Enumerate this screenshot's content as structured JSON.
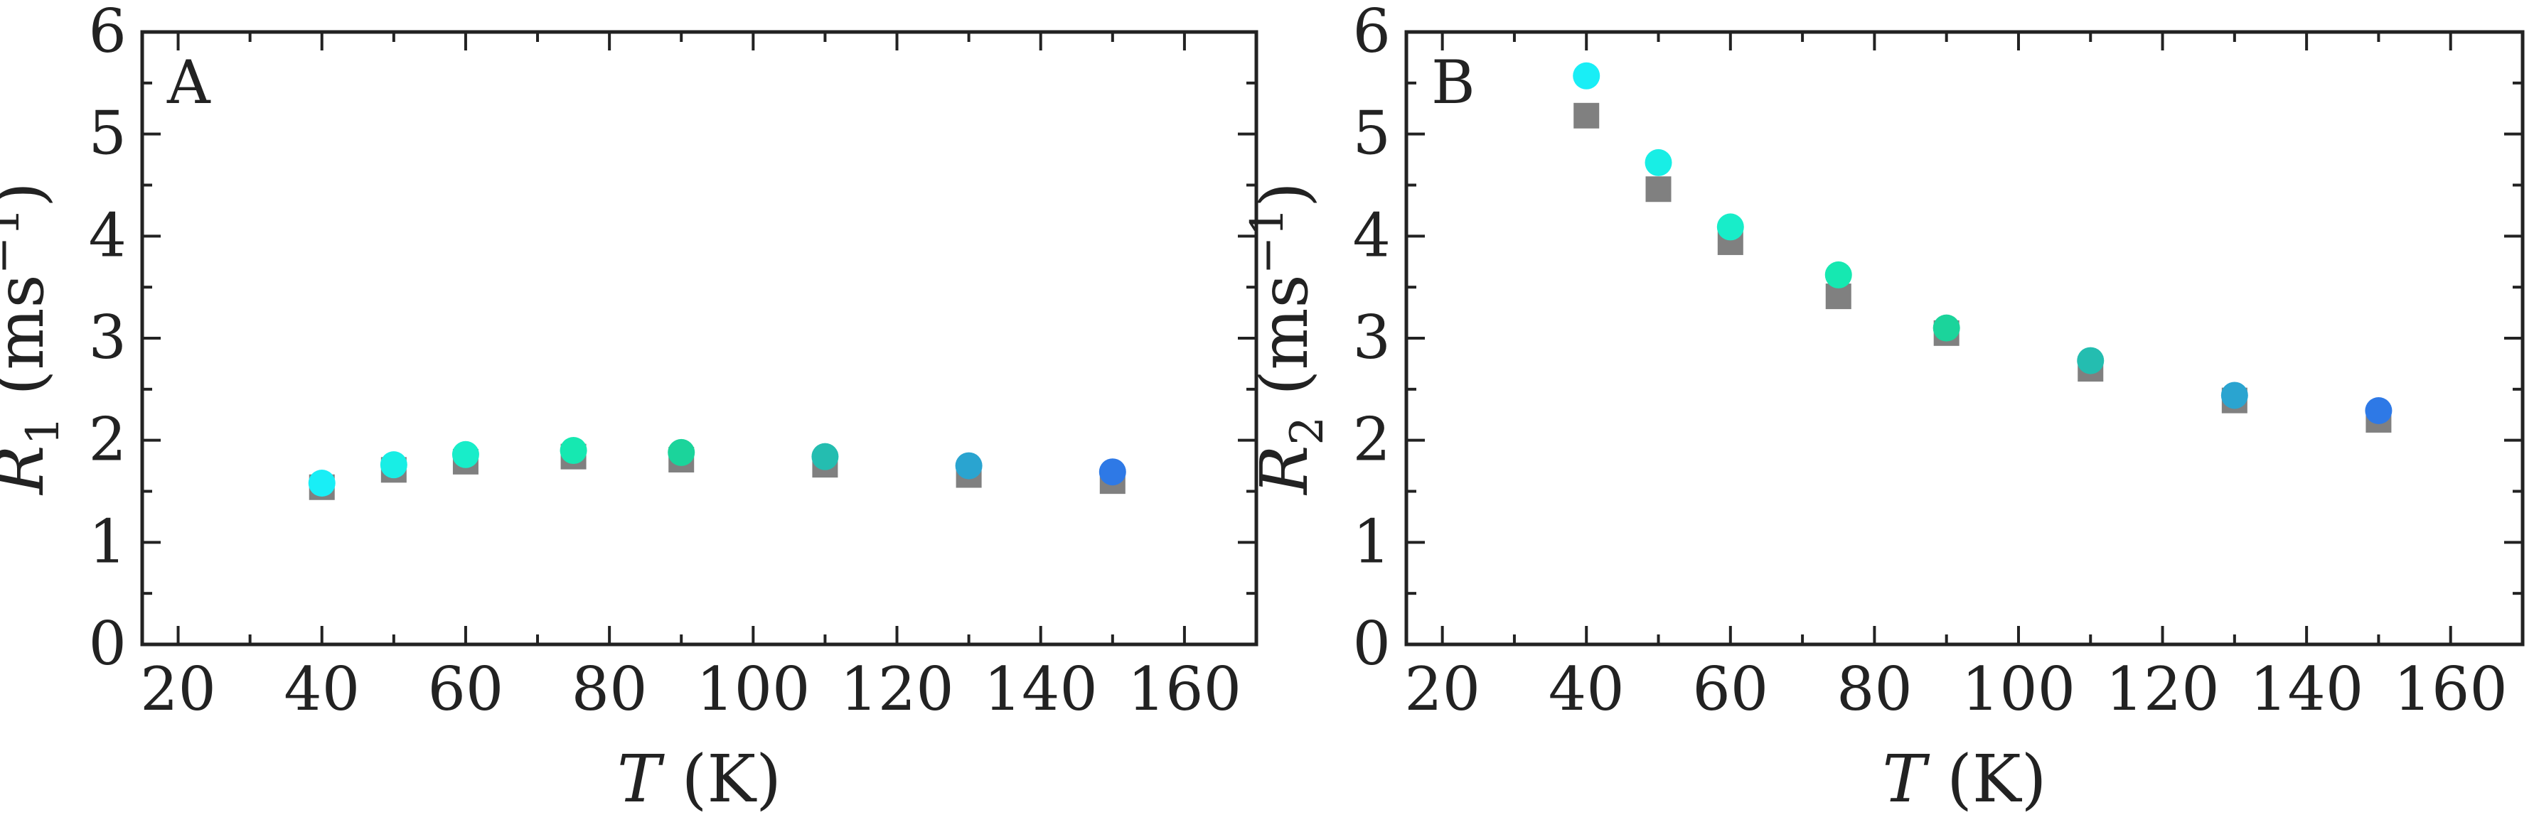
{
  "chart_data": [
    {
      "type": "scatter",
      "panel_label": "A",
      "xlabel": {
        "var": "T",
        "unit": "(K)"
      },
      "ylabel": {
        "var": "R",
        "sub": "1",
        "unit_pre": "(ms",
        "sup": "−1",
        "unit_post": ")"
      },
      "xlim": [
        15,
        170
      ],
      "ylim": [
        0,
        6
      ],
      "xticks": [
        20,
        40,
        60,
        80,
        100,
        120,
        140,
        160
      ],
      "yticks": [
        0,
        1,
        2,
        3,
        4,
        5,
        6
      ],
      "grid": false,
      "series": [
        {
          "marker": "square",
          "color": "#808080",
          "x": [
            40,
            50,
            60,
            75,
            90,
            110,
            130,
            150
          ],
          "y": [
            1.54,
            1.71,
            1.79,
            1.84,
            1.81,
            1.76,
            1.66,
            1.6
          ]
        },
        {
          "marker": "circle",
          "x": [
            40,
            50,
            60,
            75,
            90,
            110,
            130,
            150
          ],
          "y": [
            1.58,
            1.76,
            1.86,
            1.9,
            1.88,
            1.84,
            1.75,
            1.69
          ],
          "colors": [
            "#19eef6",
            "#18eee5",
            "#18edc9",
            "#16e8b1",
            "#1bd49b",
            "#24bdb0",
            "#2aa4d0",
            "#2e79e6"
          ]
        }
      ]
    },
    {
      "type": "scatter",
      "panel_label": "B",
      "xlabel": {
        "var": "T",
        "unit": "(K)"
      },
      "ylabel": {
        "var": "R",
        "sub": "2",
        "unit_pre": "(ms",
        "sup": "−1",
        "unit_post": ")"
      },
      "xlim": [
        15,
        170
      ],
      "ylim": [
        0,
        6
      ],
      "xticks": [
        20,
        40,
        60,
        80,
        100,
        120,
        140,
        160
      ],
      "yticks": [
        0,
        1,
        2,
        3,
        4,
        5,
        6
      ],
      "grid": false,
      "series": [
        {
          "marker": "square",
          "color": "#808080",
          "x": [
            40,
            50,
            60,
            75,
            90,
            110,
            130,
            150
          ],
          "y": [
            5.18,
            4.46,
            3.94,
            3.41,
            3.05,
            2.7,
            2.39,
            2.2
          ]
        },
        {
          "marker": "circle",
          "x": [
            40,
            50,
            60,
            75,
            90,
            110,
            130,
            150
          ],
          "y": [
            5.57,
            4.72,
            4.09,
            3.62,
            3.1,
            2.78,
            2.44,
            2.29
          ],
          "colors": [
            "#19eef6",
            "#18eee5",
            "#18edc9",
            "#16e8b1",
            "#1bd49b",
            "#24bdb0",
            "#2aa4d0",
            "#2e79e6"
          ]
        }
      ]
    }
  ]
}
